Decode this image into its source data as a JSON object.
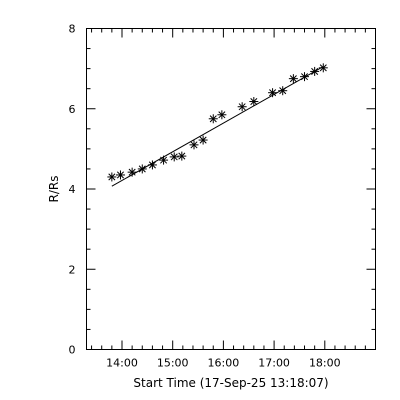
{
  "chart_data": {
    "type": "scatter",
    "xlabel": "Start Time (17-Sep-25 13:18:07)",
    "ylabel": "R/Rs",
    "x_ticks": [
      {
        "hours": 14,
        "label": "14:00"
      },
      {
        "hours": 15,
        "label": "15:00"
      },
      {
        "hours": 16,
        "label": "16:00"
      },
      {
        "hours": 17,
        "label": "17:00"
      },
      {
        "hours": 18,
        "label": "18:00"
      }
    ],
    "y_ticks": [
      {
        "value": 0,
        "label": "0"
      },
      {
        "value": 2,
        "label": "2"
      },
      {
        "value": 4,
        "label": "4"
      },
      {
        "value": 6,
        "label": "6"
      },
      {
        "value": 8,
        "label": "8"
      }
    ],
    "xlim_hours": [
      13.3,
      19.0
    ],
    "ylim": [
      0,
      8
    ],
    "x_minor_per_major": 5,
    "y_minor_per_major": 4,
    "marker": "asterisk",
    "series": [
      {
        "x_hours": [
          13.8,
          13.97,
          14.2,
          14.4,
          14.6,
          14.82,
          15.03,
          15.18,
          15.42,
          15.6,
          15.8,
          15.97,
          16.37,
          16.6,
          16.97,
          17.17,
          17.38,
          17.6,
          17.8,
          17.97
        ],
        "values": [
          4.3,
          4.35,
          4.42,
          4.5,
          4.6,
          4.72,
          4.8,
          4.82,
          5.1,
          5.22,
          5.75,
          5.85,
          6.05,
          6.18,
          6.4,
          6.45,
          6.75,
          6.8,
          6.93,
          7.02
        ]
      }
    ],
    "fit_line": {
      "x_hours": [
        13.8,
        17.97
      ],
      "values": [
        4.07,
        7.05
      ]
    }
  }
}
